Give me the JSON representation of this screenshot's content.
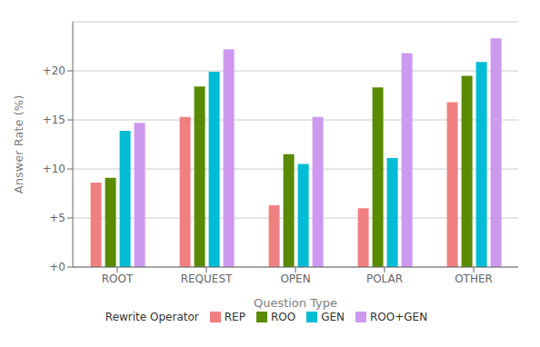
{
  "chart_data": {
    "type": "bar",
    "categories": [
      "ROOT",
      "REQUEST",
      "OPEN",
      "POLAR",
      "OTHER"
    ],
    "series": [
      {
        "name": "REP",
        "color": "#F08080",
        "values": [
          8.6,
          15.3,
          6.3,
          6.0,
          16.8
        ]
      },
      {
        "name": "ROO",
        "color": "#5A8A00",
        "values": [
          9.1,
          18.4,
          11.5,
          18.3,
          19.5
        ]
      },
      {
        "name": "GEN",
        "color": "#00BCD4",
        "values": [
          13.9,
          19.9,
          10.5,
          11.1,
          20.9
        ]
      },
      {
        "name": "ROO+GEN",
        "color": "#CC99EE",
        "values": [
          14.7,
          22.2,
          15.3,
          21.8,
          23.3
        ]
      }
    ],
    "xlabel": "Question Type",
    "ylabel": "Answer Rate (%)",
    "legend_title": "Rewrite Operator",
    "ylim": [
      0,
      25
    ],
    "yticks": [
      {
        "value": 0,
        "label": "+0"
      },
      {
        "value": 5,
        "label": "+5"
      },
      {
        "value": 10,
        "label": "+10"
      },
      {
        "value": 15,
        "label": "+15"
      },
      {
        "value": 20,
        "label": "+20"
      }
    ],
    "grid": true,
    "legend": "bottom"
  }
}
